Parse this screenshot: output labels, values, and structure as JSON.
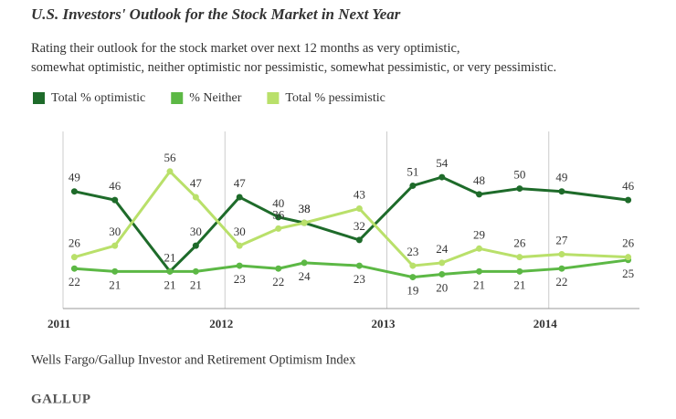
{
  "chart_data": {
    "type": "line",
    "title": "U.S. Investors' Outlook for the Stock Market in Next Year",
    "subtitle": "Rating their outlook for the stock market over next 12 months as very optimistic, somewhat optimistic, neither optimistic nor pessimistic, somewhat pessimistic, or very pessimistic.",
    "x": [
      2011.07,
      2011.32,
      2011.66,
      2011.82,
      2012.09,
      2012.33,
      2012.49,
      2012.83,
      2013.16,
      2013.34,
      2013.57,
      2013.82,
      2014.08,
      2014.49
    ],
    "series": [
      {
        "name": "Total % optimistic",
        "color": "#1e6b2a",
        "values": [
          49,
          46,
          21,
          30,
          47,
          40,
          38,
          32,
          51,
          54,
          48,
          50,
          49,
          46
        ]
      },
      {
        "name": "% Neither",
        "color": "#5cb845",
        "values": [
          22,
          21,
          21,
          21,
          23,
          22,
          24,
          23,
          19,
          20,
          21,
          21,
          22,
          25
        ]
      },
      {
        "name": "Total % pessimistic",
        "color": "#b9e06a",
        "values": [
          26,
          30,
          56,
          47,
          30,
          36,
          38,
          43,
          23,
          24,
          29,
          26,
          27,
          26
        ]
      }
    ],
    "xlim": [
      2011,
      2014.56
    ],
    "xticks": [
      2011,
      2012,
      2013,
      2014
    ],
    "ylim": [
      8,
      70
    ],
    "source": "Wells Fargo/Gallup Investor and Retirement Optimism Index",
    "brand": "GALLUP"
  }
}
